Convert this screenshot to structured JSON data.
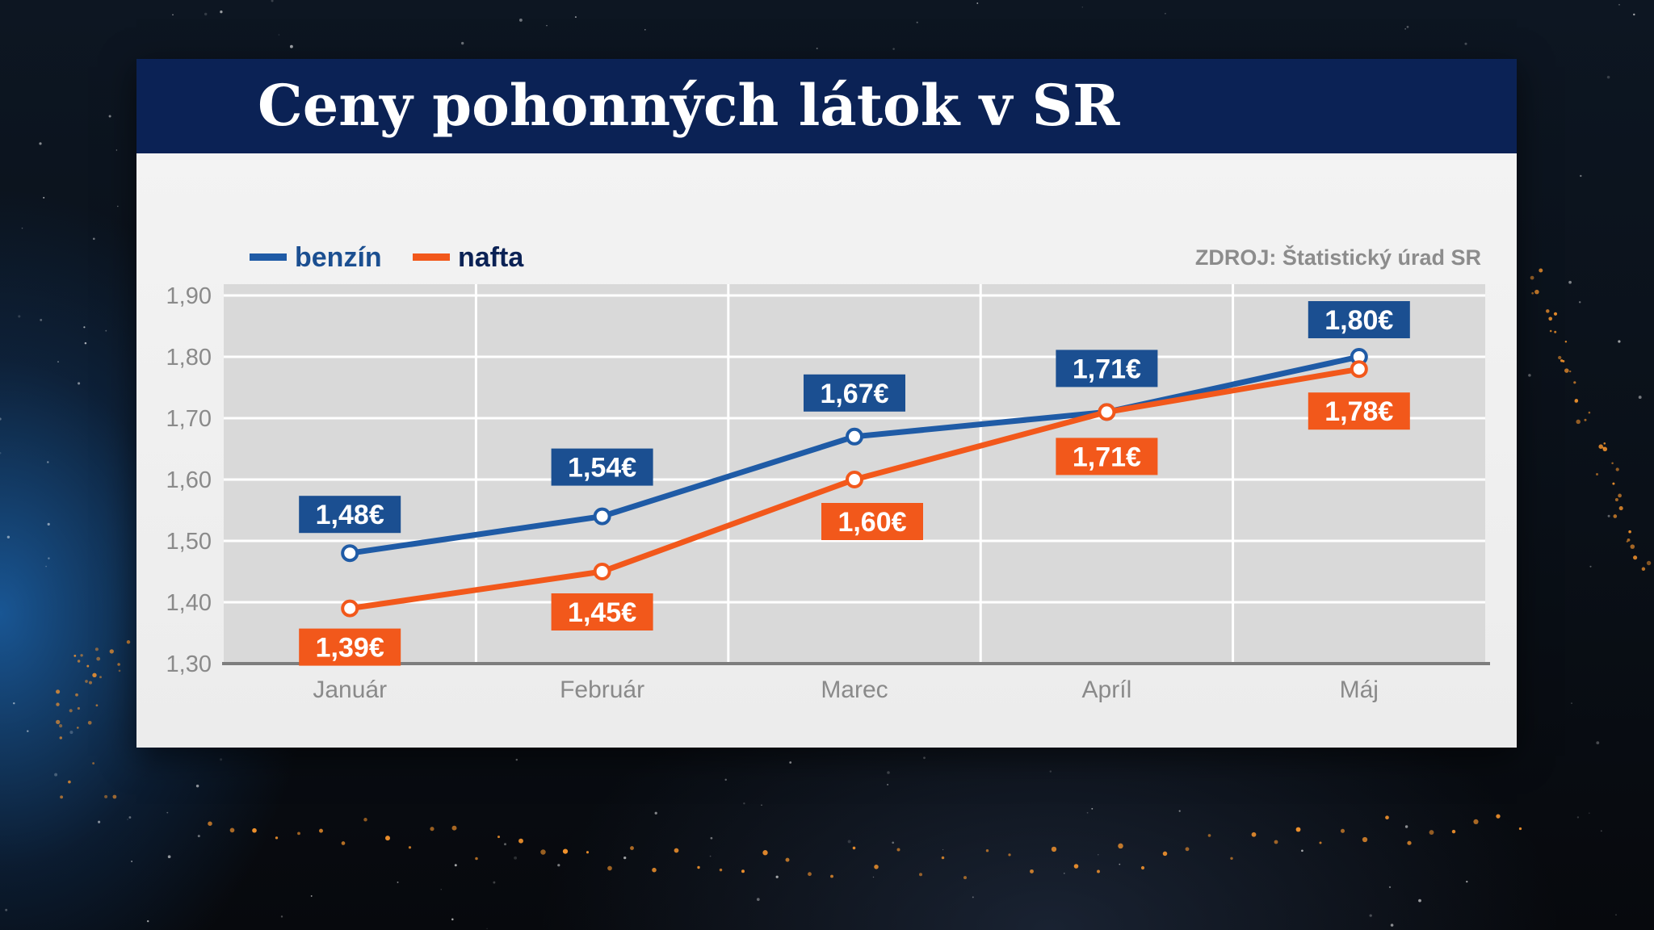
{
  "header": {
    "title": "Ceny pohonných látok v SR"
  },
  "source": "ZDROJ: Štatistický úrad SR",
  "colors": {
    "title_bar": "#0b2255",
    "benzin": "#1f5ba6",
    "benzin_label": "#1b4f91",
    "nafta": "#f2581b",
    "grid": "#ffffff",
    "plot_bg": "#d9d9d9",
    "axis_text": "#8a8a8a"
  },
  "chart_data": {
    "type": "line",
    "title": "Ceny pohonných látok v SR",
    "categories": [
      "Január",
      "Február",
      "Marec",
      "Apríl",
      "Máj"
    ],
    "series": [
      {
        "name": "benzín",
        "values": [
          1.48,
          1.54,
          1.67,
          1.71,
          1.8
        ],
        "labels": [
          "1,48€",
          "1,54€",
          "1,67€",
          "1,71€",
          "1,80€"
        ]
      },
      {
        "name": "nafta",
        "values": [
          1.39,
          1.45,
          1.6,
          1.71,
          1.78
        ],
        "labels": [
          "1,39€",
          "1,45€",
          "1,60€",
          "1,71€",
          "1,78€"
        ]
      }
    ],
    "ylim": [
      1.3,
      1.9
    ],
    "yticks": [
      1.9,
      1.8,
      1.7,
      1.6,
      1.5,
      1.4,
      1.3
    ],
    "ytick_labels": [
      "1,90",
      "1,80",
      "1,70",
      "1,60",
      "1,50",
      "1,40",
      "1,30"
    ],
    "xlabel": "",
    "ylabel": "",
    "grid": true,
    "legend": "top-left"
  }
}
